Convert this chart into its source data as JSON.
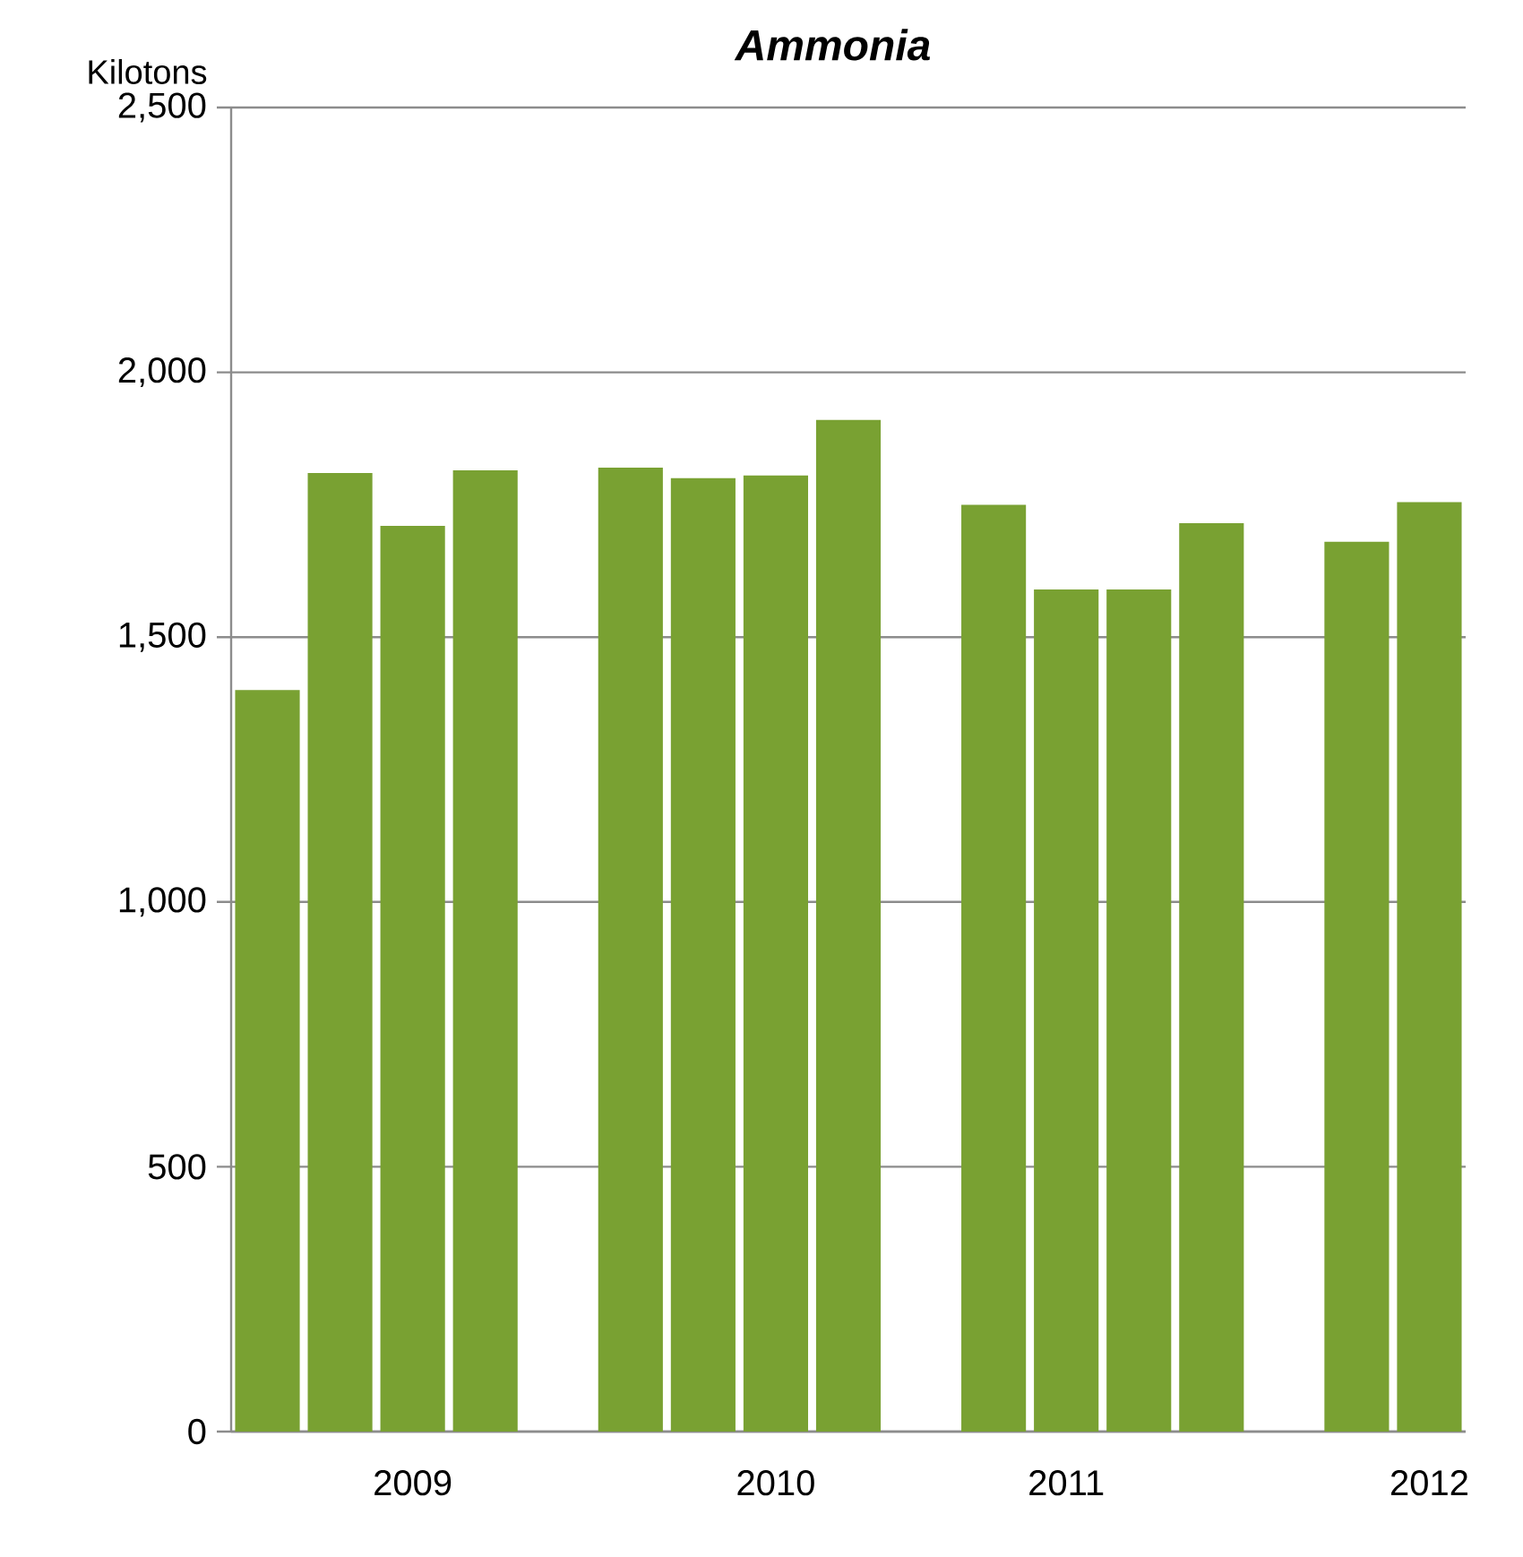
{
  "chart_data": {
    "type": "bar",
    "title": "Ammonia",
    "ylabel": "Kilotons",
    "categories": [
      null,
      null,
      "2009",
      null,
      null,
      null,
      null,
      "2010",
      null,
      null,
      null,
      "2011",
      null,
      null,
      null,
      null,
      "2012"
    ],
    "values": [
      1400,
      1810,
      1710,
      1815,
      null,
      1820,
      1800,
      1805,
      1910,
      null,
      1750,
      1590,
      1590,
      1715,
      null,
      1680,
      1755
    ],
    "color": "#79a132",
    "ylim": [
      0,
      2500
    ],
    "yticks": [
      {
        "value": 0,
        "label": "0"
      },
      {
        "value": 500,
        "label": "500"
      },
      {
        "value": 1000,
        "label": "1,000"
      },
      {
        "value": 1500,
        "label": "1,500"
      },
      {
        "value": 2000,
        "label": "2,000"
      },
      {
        "value": 2500,
        "label": "2,500"
      }
    ],
    "grid": "y"
  }
}
